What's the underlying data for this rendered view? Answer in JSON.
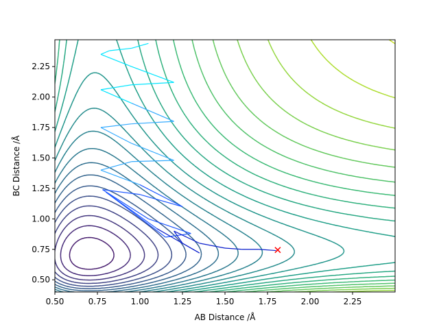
{
  "chart_data": {
    "type": "contour",
    "title": "",
    "xlabel": "AB Distance /Å",
    "ylabel": "BC Distance /Å",
    "xlim": [
      0.5,
      2.5
    ],
    "ylim": [
      0.4,
      2.47
    ],
    "xticks": [
      0.5,
      0.75,
      1.0,
      1.25,
      1.5,
      1.75,
      2.0,
      2.25
    ],
    "xtick_labels": [
      "0.50",
      "0.75",
      "1.00",
      "1.25",
      "1.50",
      "1.75",
      "2.00",
      "2.25"
    ],
    "yticks": [
      0.5,
      0.75,
      1.0,
      1.25,
      1.5,
      1.75,
      2.0,
      2.25
    ],
    "ytick_labels": [
      "0.50",
      "0.75",
      "1.00",
      "1.25",
      "1.50",
      "1.75",
      "2.00",
      "2.25"
    ],
    "colormap": "viridis",
    "contour_levels": 26,
    "grid": false,
    "legend": "none",
    "trajectory": {
      "x": [
        1.05,
        0.95,
        0.82,
        0.77,
        0.95,
        1.2,
        0.95,
        0.77,
        0.95,
        1.2,
        0.95,
        0.77,
        0.95,
        1.2,
        0.95,
        0.77,
        1.0,
        1.25,
        1.0,
        0.78,
        1.05,
        1.3,
        1.15,
        0.8,
        1.1,
        1.35,
        1.25,
        1.2,
        1.35,
        1.5,
        1.6,
        1.7,
        1.8
      ],
      "y": [
        2.44,
        2.4,
        2.38,
        2.35,
        2.25,
        2.12,
        2.1,
        2.06,
        1.95,
        1.8,
        1.78,
        1.75,
        1.62,
        1.48,
        1.47,
        1.4,
        1.28,
        1.1,
        1.2,
        1.24,
        1.0,
        0.88,
        0.85,
        1.22,
        0.92,
        0.72,
        0.8,
        0.9,
        0.8,
        0.76,
        0.75,
        0.75,
        0.74
      ],
      "colors": [
        "#00e5ff",
        "#33aaff",
        "#1a55ff",
        "#0a1ecc"
      ]
    },
    "end_marker": {
      "x": 1.81,
      "y": 0.745,
      "symbol": "x",
      "color": "#ff0000"
    }
  }
}
